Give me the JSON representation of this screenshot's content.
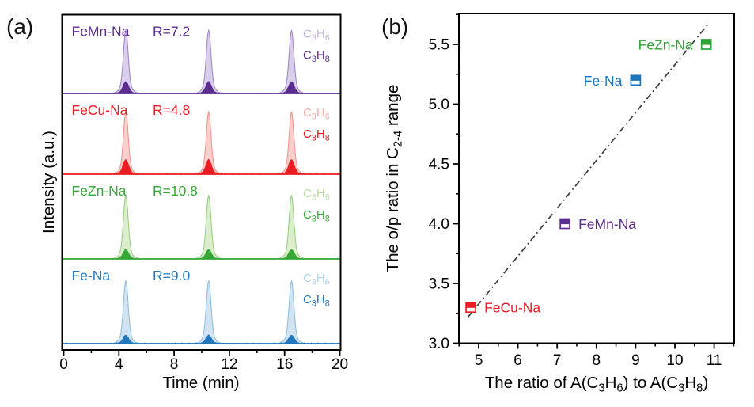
{
  "figure": {
    "panel_a_label": "(a)",
    "panel_b_label": "(b)"
  },
  "chart_data": [
    {
      "panel": "a",
      "type": "line",
      "title": "",
      "xlabel": "Time (min)",
      "ylabel": "Intensity (a.u.)",
      "xlim": [
        0,
        20
      ],
      "xticks": [
        0,
        4,
        8,
        12,
        16,
        20
      ],
      "xticks_minor": [
        2,
        6,
        10,
        14,
        18
      ],
      "grid": false,
      "peak_times_min": [
        4.5,
        10.5,
        16.5
      ],
      "series": [
        {
          "name": "FeMn-Na",
          "r_label": "R=7.2",
          "ratio": 7.2,
          "color": "#5C2D91",
          "light_fill": "#D9CFEA",
          "light_edge": "#9A82C6",
          "light_text": "#C4B6E0",
          "olefin_label": "C_{3}H_{6}",
          "paraffin_label": "C_{3}H_{8}",
          "olefin_peak_rel_height": 0.8,
          "paraffin_peak_rel_height": 0.15,
          "noise": 0.5
        },
        {
          "name": "FeCu-Na",
          "r_label": "R=4.8",
          "ratio": 4.8,
          "color": "#EC1C24",
          "light_fill": "#F9CFCC",
          "light_edge": "#F0918D",
          "light_text": "#F5ACA7",
          "olefin_label": "C_{3}H_{6}",
          "paraffin_label": "C_{3}H_{8}",
          "olefin_peak_rel_height": 0.77,
          "paraffin_peak_rel_height": 0.18,
          "noise": 0.9
        },
        {
          "name": "FeZn-Na",
          "r_label": "R=10.8",
          "ratio": 10.8,
          "color": "#35A937",
          "light_fill": "#DCEDCB",
          "light_edge": "#94CB7E",
          "light_text": "#B9DCA4",
          "olefin_label": "C_{3}H_{6}",
          "paraffin_label": "C_{3}H_{8}",
          "olefin_peak_rel_height": 0.75,
          "paraffin_peak_rel_height": 0.11,
          "noise": 0.5
        },
        {
          "name": "Fe-Na",
          "r_label": "R=9.0",
          "ratio": 9.0,
          "color": "#2277BD",
          "light_fill": "#D2E4F2",
          "light_edge": "#8CBBDE",
          "light_text": "#B2D4EC",
          "olefin_label": "C_{3}H_{6}",
          "paraffin_label": "C_{3}H_{8}",
          "olefin_peak_rel_height": 0.74,
          "paraffin_peak_rel_height": 0.1,
          "noise": 1.1
        }
      ]
    },
    {
      "panel": "b",
      "type": "scatter",
      "title": "",
      "xlabel": "The ratio of A(C_{3}H_{6}) to A(C_{3}H_{8})",
      "ylabel": "The o/p ratio in C_{2-4} range",
      "xlim": [
        4.5,
        11.5
      ],
      "ylim": [
        3.0,
        5.76
      ],
      "xticks": [
        5,
        6,
        7,
        8,
        9,
        10,
        11
      ],
      "yticks": [
        3.0,
        3.5,
        4.0,
        4.5,
        5.0,
        5.5
      ],
      "x_minor_step": 0.5,
      "y_minor_step": 0.25,
      "grid": false,
      "marker": "half-filled-square",
      "points": [
        {
          "name": "FeCu-Na",
          "x": 4.8,
          "y": 3.3,
          "color": "#EC1C24",
          "label_side": "right"
        },
        {
          "name": "FeMn-Na",
          "x": 7.2,
          "y": 4.0,
          "color": "#5C2D91",
          "label_side": "right"
        },
        {
          "name": "Fe-Na",
          "x": 9.0,
          "y": 5.2,
          "color": "#1C75BC",
          "label_side": "left"
        },
        {
          "name": "FeZn-Na",
          "x": 10.8,
          "y": 5.5,
          "color": "#2EA437",
          "label_side": "left"
        }
      ],
      "trend_line": {
        "x1": 4.73,
        "y1": 3.22,
        "x2": 10.85,
        "y2": 5.67,
        "style": "dash-dot",
        "color": "#3A3A3A"
      }
    }
  ]
}
